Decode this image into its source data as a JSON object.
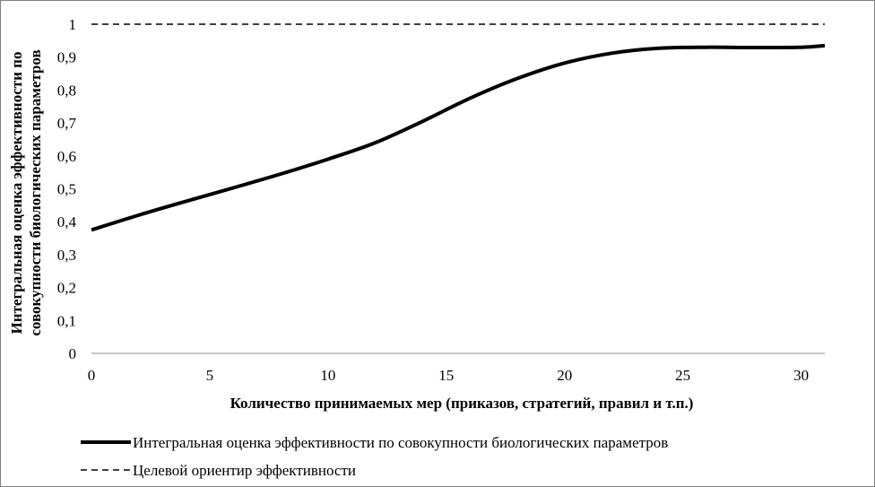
{
  "chart_data": {
    "type": "line",
    "xlabel": "Количество принимаемых мер (приказов, стратегий, правил и т.п.)",
    "ylabel_line1": "Интегральная оценка эффективности по",
    "ylabel_line2": "совокупности биологических параметров",
    "xlim": [
      0,
      31
    ],
    "ylim": [
      0,
      1
    ],
    "x_ticks": [
      "0",
      "5",
      "10",
      "15",
      "20",
      "25",
      "30"
    ],
    "y_ticks": [
      "0",
      "0,1",
      "0,2",
      "0,3",
      "0,4",
      "0,5",
      "0,6",
      "0,7",
      "0,8",
      "0,9",
      "1"
    ],
    "grid": false,
    "legend_position": "bottom",
    "series": [
      {
        "name": "Интегральная оценка эффективности по совокупности биологических параметров",
        "style": "solid",
        "color": "#000000",
        "x": [
          0,
          2,
          4,
          6,
          8,
          10,
          12,
          14,
          16,
          18,
          20,
          22,
          24,
          26,
          28,
          30,
          31
        ],
        "y": [
          0.375,
          0.42,
          0.462,
          0.503,
          0.545,
          0.59,
          0.64,
          0.705,
          0.775,
          0.835,
          0.882,
          0.912,
          0.927,
          0.93,
          0.929,
          0.93,
          0.935
        ]
      },
      {
        "name": "Целевой ориентир эффективности",
        "style": "dashed",
        "color": "#000000",
        "x": [
          0,
          31
        ],
        "y": [
          1,
          1
        ]
      }
    ]
  }
}
